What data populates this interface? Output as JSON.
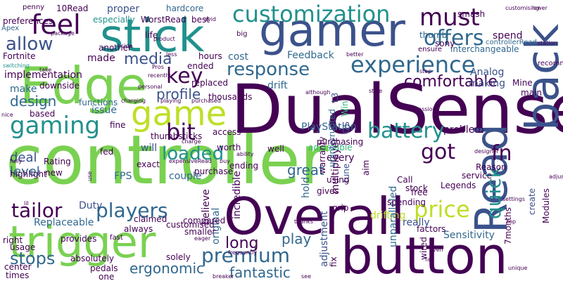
{
  "palette": {
    "background": "#ffffff",
    "dark_purple": "#440154",
    "indigo": "#3b528b",
    "teal_blue": "#31688e",
    "teal": "#21918c",
    "sea_green": "#35b779",
    "lime": "#7ad151",
    "yellow_green": "#bddf26"
  },
  "words": [
    {
      "text": "controller"
    },
    {
      "text": "DualSense"
    },
    {
      "text": "Overall"
    },
    {
      "text": "button"
    },
    {
      "text": "Edge"
    },
    {
      "text": "stick"
    },
    {
      "text": "gamer"
    },
    {
      "text": "back"
    },
    {
      "text": "trigger"
    },
    {
      "text": "Read"
    },
    {
      "text": "game"
    },
    {
      "text": "customization"
    },
    {
      "text": "experience"
    },
    {
      "text": "feel"
    },
    {
      "text": "must"
    },
    {
      "text": "offers"
    },
    {
      "text": "gaming"
    },
    {
      "text": "response"
    },
    {
      "text": "key"
    },
    {
      "text": "allow"
    },
    {
      "text": "battery"
    },
    {
      "text": "bit"
    },
    {
      "text": "tailor"
    },
    {
      "text": "players"
    },
    {
      "text": "got"
    },
    {
      "text": "price"
    },
    {
      "text": "premium"
    },
    {
      "text": "quick"
    },
    {
      "text": "fn"
    },
    {
      "text": "stops"
    },
    {
      "text": "loaded"
    },
    {
      "text": "comfortable"
    },
    {
      "text": "design"
    },
    {
      "text": "media"
    },
    {
      "text": "ergonomic"
    },
    {
      "text": "fantastic"
    },
    {
      "text": "long"
    },
    {
      "text": "play"
    },
    {
      "text": "profile"
    },
    {
      "text": "Feedback"
    },
    {
      "text": "PlayStation"
    },
    {
      "text": "Analog"
    },
    {
      "text": "making"
    },
    {
      "text": "interchangeable"
    },
    {
      "text": "cost"
    },
    {
      "text": "drift"
    },
    {
      "text": "issue"
    },
    {
      "text": "make"
    },
    {
      "text": "deal"
    },
    {
      "text": "every"
    },
    {
      "text": "great"
    },
    {
      "text": "problem"
    },
    {
      "text": "Sensitivity"
    },
    {
      "text": "drifting"
    },
    {
      "text": "really"
    },
    {
      "text": "unparalleled"
    },
    {
      "text": "adjustment"
    },
    {
      "text": "original"
    },
    {
      "text": "hold"
    },
    {
      "text": "believe"
    },
    {
      "text": "incredible"
    },
    {
      "text": "multiplayer"
    },
    {
      "text": "level"
    },
    {
      "text": "Replaceable"
    },
    {
      "text": "Duty"
    },
    {
      "text": "FPS"
    },
    {
      "text": "couple"
    },
    {
      "text": "proper"
    },
    {
      "text": "10Read"
    },
    {
      "text": "penny"
    },
    {
      "text": "preferences"
    },
    {
      "text": "Apex"
    },
    {
      "text": "especially"
    },
    {
      "text": "WorstRead"
    },
    {
      "text": "hardcore"
    },
    {
      "text": "best"
    },
    {
      "text": "smash"
    },
    {
      "text": "spend"
    },
    {
      "text": "sony"
    },
    {
      "text": "thumb"
    },
    {
      "text": "ensure"
    },
    {
      "text": "controllerRead"
    },
    {
      "text": "big"
    },
    {
      "text": "life"
    },
    {
      "text": "another"
    },
    {
      "text": "Fortnite"
    },
    {
      "text": "made"
    },
    {
      "text": "hours"
    },
    {
      "text": "ended"
    },
    {
      "text": "replaced"
    },
    {
      "text": "thousands"
    },
    {
      "text": "L3"
    },
    {
      "text": "Win"
    },
    {
      "text": "DS"
    },
    {
      "text": "main"
    },
    {
      "text": "Mine"
    },
    {
      "text": "functions"
    },
    {
      "text": "based"
    },
    {
      "text": "fine"
    },
    {
      "text": "fed"
    },
    {
      "text": "will"
    },
    {
      "text": "thumbsticks"
    },
    {
      "text": "access"
    },
    {
      "text": "worth"
    },
    {
      "text": "well"
    },
    {
      "text": "adjustable"
    },
    {
      "text": "warranty"
    },
    {
      "text": "uninterrupted"
    },
    {
      "text": "purchasing"
    },
    {
      "text": "tune"
    },
    {
      "text": "Reason"
    },
    {
      "text": "Modules"
    },
    {
      "text": "create"
    },
    {
      "text": "service"
    },
    {
      "text": "Legends"
    },
    {
      "text": "free"
    },
    {
      "text": "stock"
    },
    {
      "text": "gives"
    },
    {
      "text": "using"
    },
    {
      "text": "Call"
    },
    {
      "text": "aim"
    },
    {
      "text": "Rating"
    },
    {
      "text": "new"
    },
    {
      "text": "highlight"
    },
    {
      "text": "exact"
    },
    {
      "text": "purchase"
    },
    {
      "text": "ending"
    },
    {
      "text": "claimed"
    },
    {
      "text": "compared"
    },
    {
      "text": "always"
    },
    {
      "text": "grip"
    },
    {
      "text": "spending"
    },
    {
      "text": "7months"
    },
    {
      "text": "factors"
    },
    {
      "text": "wired"
    },
    {
      "text": "fix"
    },
    {
      "text": "customised"
    },
    {
      "text": "smaller"
    },
    {
      "text": "right"
    },
    {
      "text": "usage"
    },
    {
      "text": "center"
    },
    {
      "text": "times"
    },
    {
      "text": "provides"
    },
    {
      "text": "absolutely"
    },
    {
      "text": "pedals"
    },
    {
      "text": "one"
    },
    {
      "text": "solely"
    },
    {
      "text": "fast"
    },
    {
      "text": "implementation"
    },
    {
      "text": "downside"
    },
    {
      "text": "switching"
    },
    {
      "text": "style"
    },
    {
      "text": "better"
    },
    {
      "text": "step"
    },
    {
      "text": "recommend"
    },
    {
      "text": "station"
    },
    {
      "text": "customising"
    },
    {
      "text": "lower"
    },
    {
      "text": "personal"
    },
    {
      "text": "charging"
    },
    {
      "text": "playing"
    },
    {
      "text": "purchased"
    },
    {
      "text": "although"
    },
    {
      "text": "nice"
    },
    {
      "text": "Pros"
    },
    {
      "text": "recently"
    },
    {
      "text": "less"
    },
    {
      "text": "product"
    },
    {
      "text": "avid"
    },
    {
      "text": "package"
    },
    {
      "text": "side"
    },
    {
      "text": "take"
    },
    {
      "text": "sessions"
    },
    {
      "text": "designer"
    },
    {
      "text": "adjust"
    },
    {
      "text": "settings"
    },
    {
      "text": "top"
    },
    {
      "text": "even"
    },
    {
      "text": "see"
    },
    {
      "text": "breaker"
    },
    {
      "text": "fab"
    },
    {
      "text": "thanks"
    },
    {
      "text": "unique"
    },
    {
      "text": "frequently"
    },
    {
      "text": "eager"
    },
    {
      "text": "ability"
    },
    {
      "text": "charge"
    },
    {
      "text": "buy"
    },
    {
      "text": "expensiveRead"
    },
    {
      "text": "use"
    },
    {
      "text": "fully"
    },
    {
      "text": "lil"
    }
  ]
}
